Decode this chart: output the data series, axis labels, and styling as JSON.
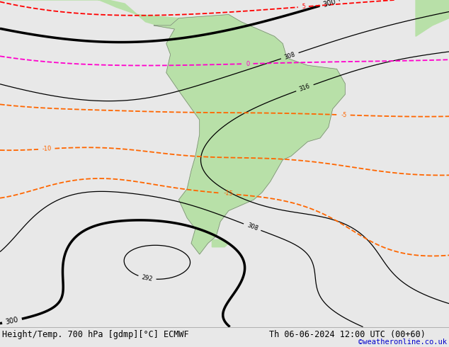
{
  "title_left": "Height/Temp. 700 hPa [gdmp][°C] ECMWF",
  "title_right": "Th 06-06-2024 12:00 UTC (00+60)",
  "credit": "©weatheronline.co.uk",
  "background_color": "#d0d0d0",
  "land_color": "#b8e0a8",
  "ocean_color": "#d0d0d0",
  "border_color": "#707070",
  "title_fontsize": 8.5,
  "credit_color": "#0000cc",
  "credit_fontsize": 7.5,
  "fig_width": 6.34,
  "fig_height": 4.9,
  "dpi": 100,
  "lon_min": -118,
  "lon_max": -10,
  "lat_min": -75,
  "lat_max": 15,
  "geop_color": "#000000",
  "temp_neg_color": "#ff6600",
  "temp_zero_color": "#ff00cc",
  "temp_pos_color": "#ff0000",
  "bottom_bar_color": "#e8e8e8",
  "bottom_bar_height": 0.058
}
